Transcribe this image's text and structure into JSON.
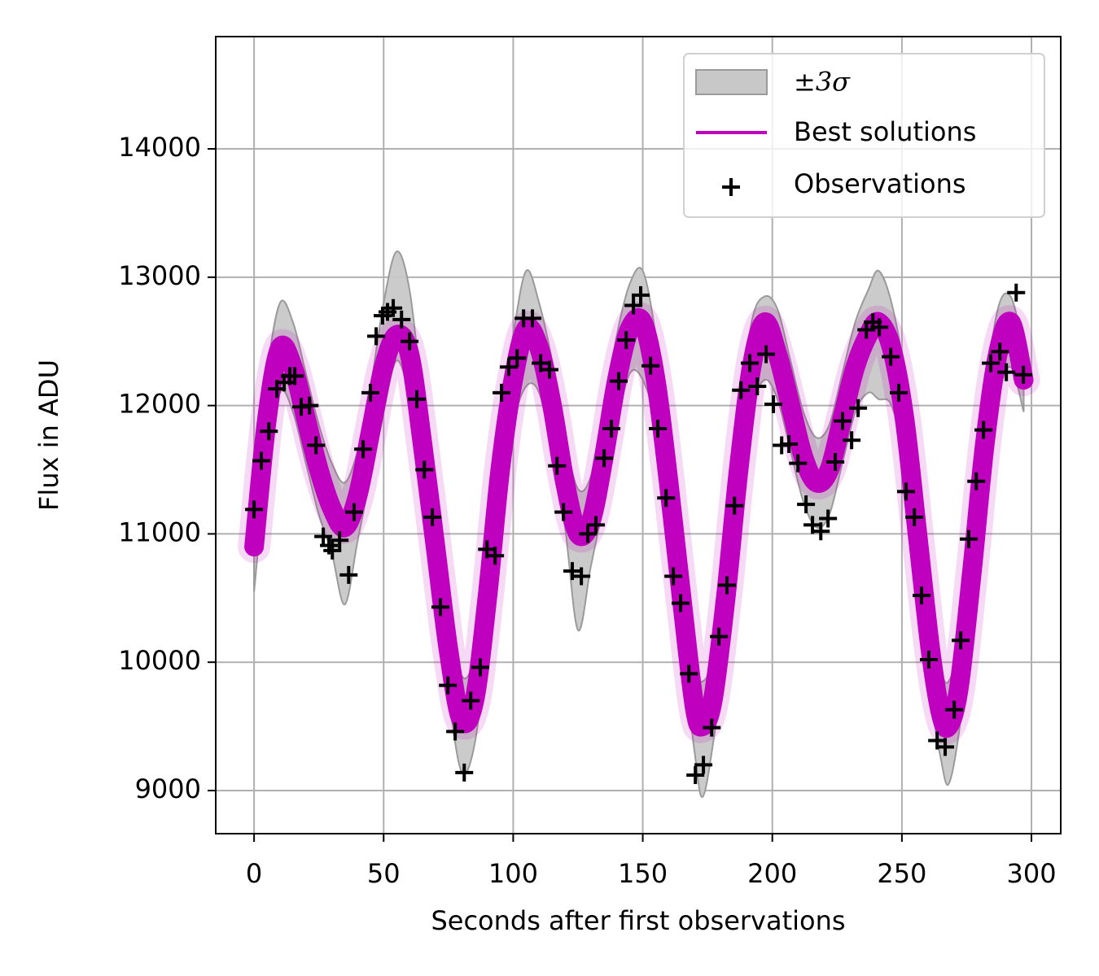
{
  "chart_data": {
    "type": "line",
    "xlabel": "Seconds after first observations",
    "ylabel": "Flux in ADU",
    "xlim": [
      -14.8,
      311.3
    ],
    "ylim": [
      8664,
      14875
    ],
    "xticks": [
      0,
      50,
      100,
      150,
      200,
      250,
      300
    ],
    "yticks": [
      9000,
      10000,
      11000,
      12000,
      13000,
      14000
    ],
    "grid": true,
    "legend": "upper right",
    "x": [
      0,
      5,
      10,
      15,
      20,
      25,
      30,
      35,
      40,
      45,
      50,
      55,
      60,
      65,
      70,
      75,
      80,
      85,
      90,
      95,
      100,
      105,
      110,
      115,
      120,
      125,
      130,
      135,
      140,
      145,
      150,
      155,
      160,
      165,
      170,
      173,
      177,
      182,
      187,
      192,
      197,
      202,
      207,
      212,
      217,
      222,
      227,
      232,
      237,
      241,
      246,
      251,
      256,
      261,
      265,
      268,
      272,
      277,
      282,
      287,
      292,
      297
    ],
    "series": [
      {
        "name": "Best solutions",
        "color": "#bf00bf",
        "values": [
          10900,
          11900,
          12450,
          12300,
          11900,
          11500,
          11200,
          11050,
          11300,
          11800,
          12300,
          12550,
          12400,
          11700,
          10900,
          10100,
          9550,
          9700,
          10500,
          11500,
          12200,
          12600,
          12450,
          12000,
          11400,
          11000,
          11100,
          11600,
          12200,
          12600,
          12650,
          12200,
          11400,
          10500,
          9650,
          9500,
          9700,
          10500,
          11500,
          12300,
          12650,
          12400,
          12000,
          11600,
          11400,
          11500,
          11900,
          12300,
          12550,
          12650,
          12450,
          11900,
          11000,
          10100,
          9600,
          9500,
          9800,
          10700,
          11700,
          12400,
          12650,
          12200
        ]
      }
    ],
    "band": {
      "name": "±3σ",
      "color": "#c8c8c8",
      "upper": [
        11250,
        12250,
        12800,
        12650,
        12250,
        11850,
        11550,
        11400,
        11650,
        12150,
        12800,
        13200,
        12900,
        12050,
        11250,
        10450,
        9900,
        10050,
        10850,
        11850,
        12550,
        13050,
        12800,
        12350,
        11750,
        11350,
        11450,
        11950,
        12550,
        12950,
        13050,
        12550,
        11750,
        10850,
        10000,
        9850,
        10050,
        10850,
        11850,
        12650,
        12850,
        12750,
        12350,
        11950,
        11750,
        11850,
        12250,
        12650,
        12900,
        13050,
        12800,
        12250,
        11350,
        10450,
        9950,
        9850,
        10150,
        11050,
        12050,
        12750,
        12850,
        12450
      ],
      "lower": [
        10550,
        11550,
        12100,
        11950,
        11550,
        11150,
        10850,
        10450,
        10950,
        11450,
        11950,
        12350,
        12050,
        11350,
        10550,
        9750,
        9150,
        9350,
        10150,
        11150,
        11850,
        12150,
        12100,
        11650,
        11050,
        10250,
        10750,
        11250,
        11850,
        12250,
        12200,
        11850,
        11050,
        10150,
        9300,
        8950,
        9350,
        10150,
        11150,
        11950,
        12200,
        12050,
        11650,
        11250,
        11050,
        11150,
        11550,
        11950,
        12100,
        12050,
        12000,
        11550,
        10650,
        9750,
        9250,
        9050,
        9450,
        10350,
        11350,
        12050,
        12300,
        11950
      ]
    },
    "observations": {
      "name": "Observations",
      "color": "#000000",
      "x": [
        0,
        2.8,
        5.7,
        8.8,
        11.6,
        13.8,
        15.7,
        18.2,
        21.4,
        23.9,
        26.7,
        28.9,
        30.2,
        33.0,
        36.5,
        38.6,
        42.1,
        44.9,
        47.1,
        49.6,
        51.5,
        53.7,
        56.9,
        60.0,
        62.8,
        65.7,
        68.8,
        71.9,
        74.8,
        77.6,
        81.1,
        83.6,
        87.3,
        89.9,
        93.0,
        95.5,
        98.3,
        101.5,
        104.0,
        107.4,
        110.6,
        114.0,
        116.9,
        119.4,
        122.8,
        126.3,
        128.8,
        131.9,
        135.1,
        137.9,
        140.7,
        143.6,
        146.4,
        149.2,
        153.0,
        155.8,
        159.0,
        161.8,
        164.6,
        167.8,
        170.3,
        173.4,
        176.6,
        179.4,
        182.5,
        185.4,
        187.9,
        191.3,
        194.2,
        197.6,
        200.4,
        203.6,
        206.4,
        209.9,
        213.0,
        215.5,
        218.7,
        221.5,
        224.3,
        227.1,
        230.6,
        233.1,
        236.3,
        238.8,
        241.3,
        245.7,
        248.8,
        251.6,
        254.8,
        257.6,
        260.4,
        263.6,
        266.7,
        270.2,
        272.7,
        275.8,
        278.7,
        281.5,
        284.3,
        287.8,
        290.3,
        294.1,
        296.9
      ],
      "y": [
        11190,
        11570,
        11800,
        12130,
        12180,
        12230,
        12230,
        11990,
        12000,
        11690,
        10980,
        10910,
        10870,
        10950,
        10680,
        11170,
        11660,
        12100,
        12540,
        12700,
        12730,
        12760,
        12670,
        12500,
        12050,
        11500,
        11130,
        10430,
        9820,
        9460,
        9140,
        9700,
        9960,
        10880,
        10830,
        12100,
        12300,
        12370,
        12680,
        12680,
        12330,
        12280,
        11530,
        11170,
        10710,
        10670,
        11000,
        11070,
        11590,
        11820,
        12190,
        12510,
        12780,
        12860,
        12310,
        11820,
        11280,
        10670,
        10460,
        9910,
        9120,
        9200,
        9490,
        10200,
        10600,
        11220,
        12120,
        12330,
        12150,
        12400,
        12010,
        11690,
        11700,
        11550,
        11230,
        11070,
        11020,
        11120,
        11560,
        11880,
        11730,
        11980,
        12590,
        12650,
        12610,
        12380,
        12100,
        11330,
        11130,
        10520,
        10020,
        9390,
        9340,
        9630,
        10170,
        10960,
        11410,
        11810,
        12330,
        12420,
        12260,
        12880,
        12240
      ]
    }
  }
}
